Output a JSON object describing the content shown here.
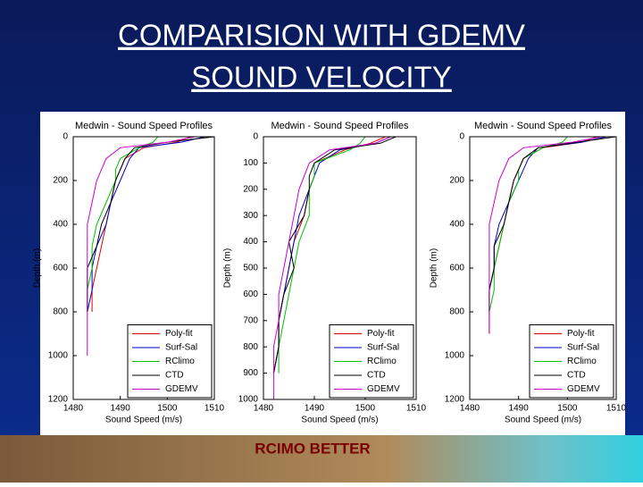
{
  "slide": {
    "title_lines": [
      "COMPARISION WITH GDEMV",
      "SOUND VELOCITY"
    ],
    "caption": "RCIMO BETTER"
  },
  "chart_data": [
    {
      "type": "line",
      "title": "Medwin - Sound Speed Profiles",
      "xlabel": "Sound Speed (m/s)",
      "ylabel": "Depth (m)",
      "y_inverted": true,
      "legend": "lower right",
      "xlim": [
        1480,
        1510
      ],
      "xticks": [
        1480,
        1490,
        1500,
        1510
      ],
      "ylim": [
        0,
        1200
      ],
      "yticks": [
        0,
        200,
        400,
        600,
        800,
        1000,
        1200
      ],
      "depths": [
        0,
        25,
        50,
        100,
        150,
        200,
        300,
        400,
        500,
        600,
        700,
        800,
        900,
        1000
      ],
      "series": [
        {
          "name": "Poly-fit",
          "color": "#e00000",
          "values": [
            1505,
            1502,
            1495,
            1491,
            1490,
            1489,
            1488,
            1487,
            1486,
            1485,
            1484,
            1484,
            null,
            null
          ]
        },
        {
          "name": "Surf-Sal",
          "color": "#0000cc",
          "values": [
            1508,
            1503,
            1494,
            1492,
            1491,
            1490,
            1488,
            1487,
            1485,
            1484,
            1484,
            1483,
            null,
            null
          ]
        },
        {
          "name": "RClimo",
          "color": "#00c000",
          "values": [
            1498,
            1497,
            1494,
            1490,
            1489,
            1489,
            1487,
            1485,
            1484,
            1484,
            1483,
            1483,
            null,
            null
          ]
        },
        {
          "name": "CTD",
          "color": "#000000",
          "values": [
            1510,
            1500,
            1493,
            1491,
            1490,
            1489,
            1488,
            1486,
            1485,
            1483,
            1483,
            1483,
            null,
            null
          ]
        },
        {
          "name": "GDEMV",
          "color": "#cc00cc",
          "values": [
            1506,
            1500,
            1490,
            1487,
            1486,
            1485,
            1484,
            1483,
            1483,
            1483,
            1483,
            1483,
            1483,
            1483
          ]
        }
      ]
    },
    {
      "type": "line",
      "title": "Medwin - Sound Speed Profiles",
      "xlabel": "Sound Speed (m/s)",
      "ylabel": "Depth (m)",
      "y_inverted": true,
      "legend": "lower right",
      "xlim": [
        1480,
        1510
      ],
      "xticks": [
        1480,
        1490,
        1500,
        1510
      ],
      "ylim": [
        0,
        1000
      ],
      "yticks": [
        0,
        100,
        200,
        300,
        400,
        500,
        600,
        700,
        800,
        900,
        1000
      ],
      "depths": [
        0,
        25,
        50,
        100,
        150,
        200,
        300,
        400,
        500,
        600,
        700,
        800,
        900,
        1000
      ],
      "series": [
        {
          "name": "Poly-fit",
          "color": "#e00000",
          "values": [
            1504,
            1501,
            1496,
            1490,
            1490,
            1489,
            1488,
            1486,
            1485,
            1484,
            1483,
            1483,
            1482,
            null
          ]
        },
        {
          "name": "Surf-Sal",
          "color": "#0000cc",
          "values": [
            1505,
            1502,
            1495,
            1491,
            1490,
            1489,
            1487,
            1486,
            1485,
            1484,
            1483,
            1483,
            1482,
            null
          ]
        },
        {
          "name": "RClimo",
          "color": "#00c000",
          "values": [
            1500,
            1499,
            1497,
            1490,
            1490,
            1489,
            1489,
            1487,
            1486,
            1485,
            1484,
            1483,
            1483,
            null
          ]
        },
        {
          "name": "CTD",
          "color": "#000000",
          "values": [
            1506,
            1503,
            1494,
            1490,
            1489,
            1489,
            1488,
            1485,
            1486,
            1484,
            1483,
            1483,
            1482,
            null
          ]
        },
        {
          "name": "GDEMV",
          "color": "#cc00cc",
          "values": [
            1505,
            1502,
            1493,
            1489,
            1488,
            1487,
            1486,
            1485,
            1484,
            1483,
            1483,
            1482,
            1482,
            1482
          ]
        }
      ]
    },
    {
      "type": "line",
      "title": "Medwin - Sound Speed Profiles",
      "xlabel": "Sound Speed (m/s)",
      "ylabel": "Depth (m)",
      "y_inverted": true,
      "legend": "lower right",
      "xlim": [
        1480,
        1510
      ],
      "xticks": [
        1480,
        1490,
        1500,
        1510
      ],
      "ylim": [
        0,
        1200
      ],
      "yticks": [
        0,
        200,
        400,
        600,
        800,
        1000,
        1200
      ],
      "depths": [
        0,
        25,
        50,
        100,
        150,
        200,
        300,
        400,
        500,
        600,
        700,
        800,
        900,
        1000
      ],
      "series": [
        {
          "name": "Poly-fit",
          "color": "#e00000",
          "values": [
            1506,
            1503,
            1495,
            1491,
            1490,
            1489,
            1488,
            1487,
            1486,
            1485,
            1484,
            1484,
            1484,
            null
          ]
        },
        {
          "name": "Surf-Sal",
          "color": "#0000cc",
          "values": [
            1508,
            1503,
            1494,
            1492,
            1491,
            1490,
            1488,
            1486,
            1485,
            1485,
            1484,
            1484,
            null,
            null
          ]
        },
        {
          "name": "RClimo",
          "color": "#00c000",
          "values": [
            1500,
            1499,
            1495,
            1491,
            1490,
            1490,
            1488,
            1487,
            1486,
            1485,
            1485,
            1484,
            null,
            null
          ]
        },
        {
          "name": "CTD",
          "color": "#000000",
          "values": [
            1510,
            1502,
            1494,
            1491,
            1490,
            1489,
            1488,
            1487,
            1485,
            1485,
            1484,
            1484,
            null,
            null
          ]
        },
        {
          "name": "GDEMV",
          "color": "#cc00cc",
          "values": [
            1507,
            1501,
            1491,
            1488,
            1487,
            1486,
            1485,
            1484,
            1484,
            1484,
            1484,
            1484,
            1484,
            null
          ]
        }
      ]
    }
  ]
}
